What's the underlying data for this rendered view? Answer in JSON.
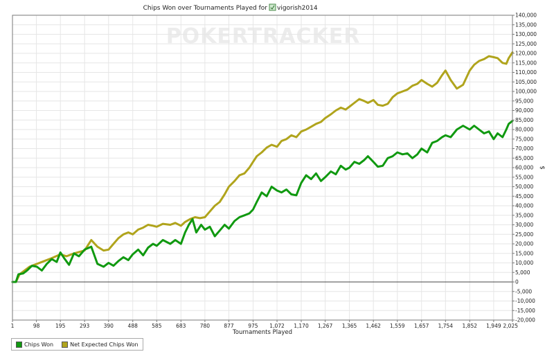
{
  "chart_data": {
    "type": "line",
    "title": "Chips Won over Tournaments Played for",
    "player": "vigorish2014",
    "watermark": "POKERTRACKER",
    "xlabel": "Tournaments Played",
    "ylabel": "$",
    "xlim": [
      1,
      2025
    ],
    "ylim": [
      -20000,
      140000
    ],
    "x_ticks": [
      1,
      98,
      195,
      293,
      390,
      488,
      585,
      683,
      780,
      877,
      975,
      1072,
      1170,
      1267,
      1365,
      1462,
      1559,
      1657,
      1754,
      1852,
      1949,
      2025
    ],
    "x_tick_labels": [
      "1",
      "98",
      "195",
      "293",
      "390",
      "488",
      "585",
      "683",
      "780",
      "877",
      "975",
      "1,072",
      "1,170",
      "1,267",
      "1,365",
      "1,462",
      "1,559",
      "1,657",
      "1,754",
      "1,852",
      "1,949",
      "2,025"
    ],
    "y_ticks": [
      140000,
      135000,
      130000,
      125000,
      120000,
      115000,
      110000,
      105000,
      100000,
      95000,
      90000,
      85000,
      80000,
      75000,
      70000,
      65000,
      60000,
      55000,
      50000,
      45000,
      40000,
      35000,
      30000,
      25000,
      20000,
      15000,
      10000,
      5000,
      0,
      -5000,
      -10000,
      -15000,
      -20000
    ],
    "y_tick_labels": [
      "140,000",
      "135,000",
      "130,000",
      "125,000",
      "120,000",
      "115,000",
      "110,000",
      "105,000",
      "100,000",
      "95,000",
      "90,000",
      "85,000",
      "80,000",
      "75,000",
      "70,000",
      "65,000",
      "60,000",
      "55,000",
      "50,000",
      "45,000",
      "40,000",
      "35,000",
      "30,000",
      "25,000",
      "20,000",
      "15,000",
      "10,000",
      "5,000",
      "0",
      "-5,000",
      "-10,000",
      "-15,000",
      "-20,000"
    ],
    "grid": true,
    "legend_position": "bottom-left",
    "series": [
      {
        "name": "Chips Won",
        "color": "#109910",
        "points": [
          [
            1,
            0
          ],
          [
            15,
            0
          ],
          [
            25,
            4000
          ],
          [
            45,
            4500
          ],
          [
            60,
            6000
          ],
          [
            80,
            8500
          ],
          [
            100,
            8000
          ],
          [
            120,
            6000
          ],
          [
            140,
            9500
          ],
          [
            160,
            12000
          ],
          [
            180,
            10500
          ],
          [
            195,
            15500
          ],
          [
            210,
            12500
          ],
          [
            230,
            9000
          ],
          [
            250,
            15000
          ],
          [
            270,
            13500
          ],
          [
            293,
            17000
          ],
          [
            320,
            18500
          ],
          [
            345,
            9500
          ],
          [
            370,
            8000
          ],
          [
            390,
            10000
          ],
          [
            410,
            8500
          ],
          [
            430,
            11000
          ],
          [
            450,
            13000
          ],
          [
            470,
            11500
          ],
          [
            488,
            14500
          ],
          [
            510,
            17000
          ],
          [
            530,
            14000
          ],
          [
            550,
            18000
          ],
          [
            570,
            20000
          ],
          [
            585,
            19000
          ],
          [
            610,
            22000
          ],
          [
            640,
            20000
          ],
          [
            660,
            22000
          ],
          [
            683,
            20000
          ],
          [
            700,
            26000
          ],
          [
            715,
            30000
          ],
          [
            730,
            33000
          ],
          [
            745,
            26000
          ],
          [
            765,
            30000
          ],
          [
            780,
            27500
          ],
          [
            800,
            29000
          ],
          [
            820,
            24000
          ],
          [
            840,
            27000
          ],
          [
            860,
            30000
          ],
          [
            877,
            28000
          ],
          [
            900,
            32000
          ],
          [
            920,
            34000
          ],
          [
            940,
            35000
          ],
          [
            960,
            36000
          ],
          [
            975,
            38000
          ],
          [
            990,
            42000
          ],
          [
            1010,
            47000
          ],
          [
            1030,
            45000
          ],
          [
            1050,
            50000
          ],
          [
            1072,
            48000
          ],
          [
            1090,
            47000
          ],
          [
            1110,
            48500
          ],
          [
            1130,
            46000
          ],
          [
            1150,
            45500
          ],
          [
            1170,
            52000
          ],
          [
            1190,
            56000
          ],
          [
            1210,
            54000
          ],
          [
            1230,
            57000
          ],
          [
            1250,
            53000
          ],
          [
            1267,
            55000
          ],
          [
            1290,
            58000
          ],
          [
            1310,
            56500
          ],
          [
            1330,
            61000
          ],
          [
            1350,
            59000
          ],
          [
            1365,
            60000
          ],
          [
            1385,
            63000
          ],
          [
            1405,
            62000
          ],
          [
            1425,
            64000
          ],
          [
            1440,
            66000
          ],
          [
            1462,
            63000
          ],
          [
            1480,
            60500
          ],
          [
            1500,
            61000
          ],
          [
            1520,
            65000
          ],
          [
            1540,
            66000
          ],
          [
            1559,
            68000
          ],
          [
            1580,
            67000
          ],
          [
            1600,
            67500
          ],
          [
            1620,
            65000
          ],
          [
            1640,
            67000
          ],
          [
            1657,
            70000
          ],
          [
            1680,
            68000
          ],
          [
            1700,
            73000
          ],
          [
            1720,
            74000
          ],
          [
            1740,
            76000
          ],
          [
            1754,
            77000
          ],
          [
            1775,
            76000
          ],
          [
            1800,
            80000
          ],
          [
            1825,
            82000
          ],
          [
            1852,
            80000
          ],
          [
            1870,
            82000
          ],
          [
            1890,
            80000
          ],
          [
            1910,
            78000
          ],
          [
            1930,
            79000
          ],
          [
            1949,
            75000
          ],
          [
            1965,
            78000
          ],
          [
            1985,
            76000
          ],
          [
            2000,
            80000
          ],
          [
            2010,
            83000
          ],
          [
            2025,
            84500
          ]
        ]
      },
      {
        "name": "Net Expected Chips Won",
        "color": "#b0a41c",
        "points": [
          [
            1,
            0
          ],
          [
            15,
            0
          ],
          [
            30,
            4000
          ],
          [
            50,
            6000
          ],
          [
            70,
            8000
          ],
          [
            100,
            9500
          ],
          [
            130,
            11000
          ],
          [
            160,
            12500
          ],
          [
            195,
            14500
          ],
          [
            220,
            13500
          ],
          [
            250,
            15000
          ],
          [
            293,
            16500
          ],
          [
            320,
            22000
          ],
          [
            345,
            18500
          ],
          [
            370,
            16500
          ],
          [
            390,
            17000
          ],
          [
            410,
            20000
          ],
          [
            430,
            23000
          ],
          [
            450,
            25000
          ],
          [
            470,
            26000
          ],
          [
            488,
            25000
          ],
          [
            510,
            27500
          ],
          [
            530,
            28500
          ],
          [
            550,
            30000
          ],
          [
            570,
            29500
          ],
          [
            585,
            29000
          ],
          [
            610,
            30500
          ],
          [
            640,
            30000
          ],
          [
            660,
            31000
          ],
          [
            683,
            29500
          ],
          [
            700,
            31500
          ],
          [
            720,
            33000
          ],
          [
            740,
            34000
          ],
          [
            760,
            33500
          ],
          [
            780,
            34000
          ],
          [
            800,
            37000
          ],
          [
            820,
            40000
          ],
          [
            840,
            42000
          ],
          [
            860,
            46000
          ],
          [
            877,
            50000
          ],
          [
            900,
            53000
          ],
          [
            920,
            56000
          ],
          [
            940,
            57000
          ],
          [
            960,
            60000
          ],
          [
            975,
            63000
          ],
          [
            990,
            66000
          ],
          [
            1010,
            68000
          ],
          [
            1030,
            70500
          ],
          [
            1050,
            72000
          ],
          [
            1072,
            71000
          ],
          [
            1090,
            74000
          ],
          [
            1110,
            75000
          ],
          [
            1130,
            77000
          ],
          [
            1150,
            76000
          ],
          [
            1170,
            79000
          ],
          [
            1190,
            80000
          ],
          [
            1210,
            81500
          ],
          [
            1230,
            83000
          ],
          [
            1250,
            84000
          ],
          [
            1267,
            86000
          ],
          [
            1290,
            88000
          ],
          [
            1310,
            90000
          ],
          [
            1330,
            91500
          ],
          [
            1350,
            90500
          ],
          [
            1365,
            92000
          ],
          [
            1385,
            94000
          ],
          [
            1405,
            96000
          ],
          [
            1425,
            95000
          ],
          [
            1440,
            94000
          ],
          [
            1462,
            95500
          ],
          [
            1480,
            93000
          ],
          [
            1500,
            92500
          ],
          [
            1520,
            93500
          ],
          [
            1540,
            97000
          ],
          [
            1559,
            99000
          ],
          [
            1580,
            100000
          ],
          [
            1600,
            101000
          ],
          [
            1620,
            103000
          ],
          [
            1640,
            104000
          ],
          [
            1657,
            106000
          ],
          [
            1680,
            104000
          ],
          [
            1700,
            102500
          ],
          [
            1720,
            104500
          ],
          [
            1740,
            108500
          ],
          [
            1754,
            111000
          ],
          [
            1775,
            106000
          ],
          [
            1800,
            101500
          ],
          [
            1825,
            103500
          ],
          [
            1852,
            111000
          ],
          [
            1870,
            114000
          ],
          [
            1890,
            116000
          ],
          [
            1910,
            117000
          ],
          [
            1930,
            118500
          ],
          [
            1949,
            118000
          ],
          [
            1965,
            117500
          ],
          [
            1985,
            115000
          ],
          [
            2000,
            114500
          ],
          [
            2010,
            117500
          ],
          [
            2025,
            120500
          ]
        ]
      }
    ]
  },
  "legend": {
    "items": [
      "Chips Won",
      "Net Expected Chips Won"
    ]
  }
}
